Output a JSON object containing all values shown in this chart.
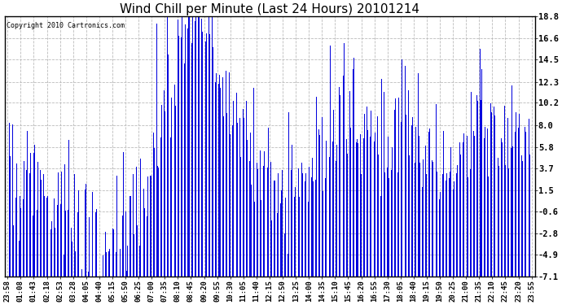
{
  "title": "Wind Chill per Minute (Last 24 Hours) 20101214",
  "copyright_text": "Copyright 2010 Cartronics.com",
  "yticks": [
    18.8,
    16.6,
    14.5,
    12.3,
    10.2,
    8.0,
    5.8,
    3.7,
    1.5,
    -0.6,
    -2.8,
    -4.9,
    -7.1
  ],
  "ymin": -7.1,
  "ymax": 18.8,
  "bar_color": "#0000dd",
  "bg_color": "#ffffff",
  "grid_color": "#bbbbbb",
  "title_fontsize": 11,
  "xtick_labels": [
    "23:58",
    "01:08",
    "01:43",
    "02:18",
    "02:53",
    "03:28",
    "04:05",
    "04:40",
    "05:15",
    "05:50",
    "06:25",
    "07:00",
    "07:35",
    "08:10",
    "08:45",
    "09:20",
    "09:55",
    "10:30",
    "11:05",
    "11:40",
    "12:15",
    "12:50",
    "13:25",
    "14:00",
    "14:35",
    "15:10",
    "15:45",
    "16:20",
    "16:55",
    "17:30",
    "18:05",
    "18:40",
    "19:15",
    "19:50",
    "20:25",
    "21:00",
    "21:35",
    "22:10",
    "22:45",
    "23:20",
    "23:55"
  ],
  "base_values": [
    4.0,
    4.0,
    3.5,
    3.5,
    3.0,
    3.0,
    2.5,
    2.5,
    1.5,
    0.5,
    -0.5,
    -1.5,
    -2.5,
    -3.5,
    -4.0,
    -4.5,
    -4.0,
    -3.5,
    -2.5,
    -1.5,
    -1.0,
    0.0,
    2.0,
    5.0,
    8.0,
    11.0,
    14.0,
    16.5,
    17.5,
    18.0,
    17.5,
    16.5,
    15.0,
    13.5,
    12.0,
    10.5,
    9.0,
    7.5,
    6.5,
    5.5,
    4.5,
    3.5,
    2.5,
    1.5,
    1.0,
    1.5,
    2.0,
    2.5,
    3.5,
    5.0,
    6.0,
    7.0,
    8.0,
    8.5,
    9.0,
    8.5,
    8.0,
    7.5,
    7.0,
    7.0,
    7.5,
    8.0,
    8.0,
    7.5,
    7.0,
    6.5,
    6.0,
    5.5,
    5.0,
    4.5,
    4.0,
    4.0,
    5.0,
    6.0,
    7.0,
    7.5,
    8.0,
    8.0,
    7.5,
    7.5,
    7.5,
    7.5,
    7.0,
    7.0
  ]
}
